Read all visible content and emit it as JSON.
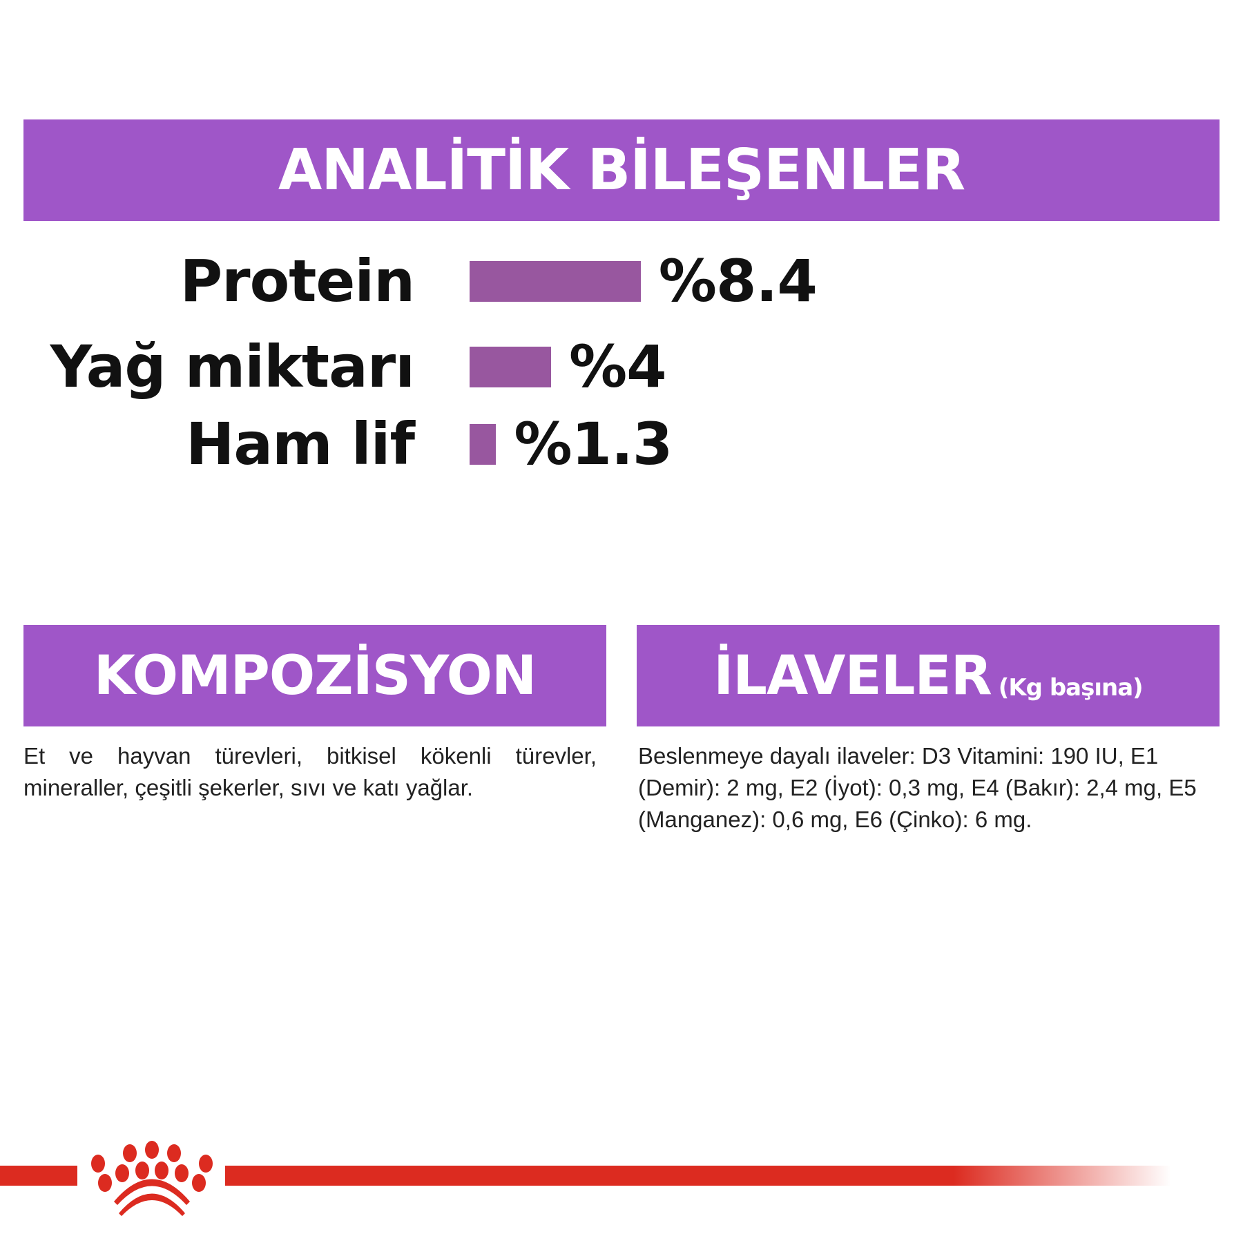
{
  "analytic": {
    "title": "ANALİTİK BİLEŞENLER",
    "items": [
      {
        "label": "Protein",
        "value": "%8.4",
        "percent": 8.4
      },
      {
        "label": "Yağ miktarı",
        "value": "%4",
        "percent": 4
      },
      {
        "label": "Ham lif",
        "value": "%1.3",
        "percent": 1.3
      }
    ]
  },
  "composition": {
    "title": "KOMPOZİSYON",
    "text": "Et ve hayvan türevleri, bitkisel kökenli türevler, mineraller, çeşitli şekerler, sıvı ve katı yağlar."
  },
  "additives": {
    "title": "İLAVELER",
    "subtitle": "(Kg başına)",
    "text": "Beslenmeye dayalı ilaveler: D3 Vitamini: 190 IU, E1 (Demir): 2 mg, E2 (İyot): 0,3 mg, E4 (Bakır): 2,4 mg, E5 (Manganez): 0,6 mg, E6 (Çinko): 6 mg."
  },
  "colors": {
    "header": "#9f56c8",
    "bar": "#98579f",
    "brand_red": "#dc2b20"
  },
  "logo": {
    "icon": "crown-icon"
  }
}
